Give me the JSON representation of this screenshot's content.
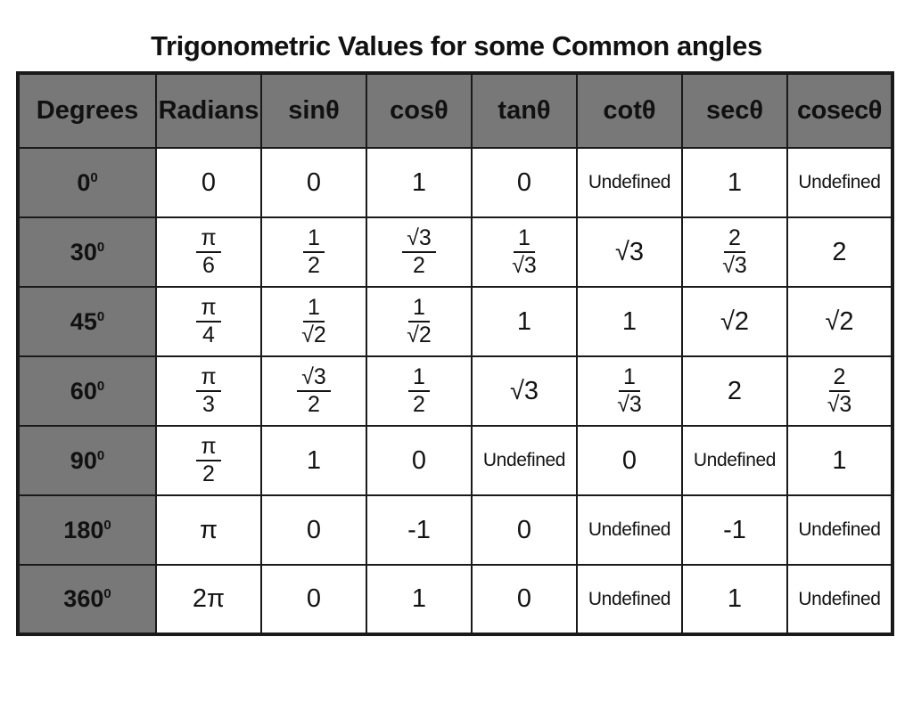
{
  "title": "Trigonometric Values for some Common angles",
  "colors": {
    "header_bg": "#787878",
    "grid_line": "#1a1a1a",
    "cell_bg": "#ffffff",
    "page_bg": "#ffffff",
    "text": "#131313"
  },
  "chart_data": {
    "type": "table",
    "title": "Trigonometric Values for some Common angles",
    "columns": [
      "Degrees",
      "Radians",
      "sinθ",
      "cosθ",
      "tanθ",
      "cotθ",
      "secθ",
      "cosecθ"
    ],
    "rows": [
      {
        "degrees": {
          "label": "0",
          "sup": "0"
        },
        "values": [
          "0",
          "0",
          "1",
          "0",
          "Undefined",
          "1",
          "Undefined"
        ]
      },
      {
        "degrees": {
          "label": "30",
          "sup": "0"
        },
        "values": [
          {
            "frac": [
              "π",
              "6"
            ]
          },
          {
            "frac": [
              "1",
              "2"
            ]
          },
          {
            "frac": [
              "√3",
              "2"
            ]
          },
          {
            "frac": [
              "1",
              "√3"
            ]
          },
          "√3",
          {
            "frac": [
              "2",
              "√3"
            ]
          },
          "2"
        ]
      },
      {
        "degrees": {
          "label": "45",
          "sup": "0"
        },
        "values": [
          {
            "frac": [
              "π",
              "4"
            ]
          },
          {
            "frac": [
              "1",
              "√2"
            ]
          },
          {
            "frac": [
              "1",
              "√2"
            ]
          },
          "1",
          "1",
          "√2",
          "√2"
        ]
      },
      {
        "degrees": {
          "label": "60",
          "sup": "0"
        },
        "values": [
          {
            "frac": [
              "π",
              "3"
            ]
          },
          {
            "frac": [
              "√3",
              "2"
            ]
          },
          {
            "frac": [
              "1",
              "2"
            ]
          },
          "√3",
          {
            "frac": [
              "1",
              "√3"
            ]
          },
          "2",
          {
            "frac": [
              "2",
              "√3"
            ]
          }
        ]
      },
      {
        "degrees": {
          "label": "90",
          "sup": "0"
        },
        "values": [
          {
            "frac": [
              "π",
              "2"
            ]
          },
          "1",
          "0",
          "Undefined",
          "0",
          "Undefined",
          "1"
        ]
      },
      {
        "degrees": {
          "label": "180",
          "sup": "0"
        },
        "values": [
          "π",
          "0",
          "-1",
          "0",
          "Undefined",
          "-1",
          "Undefined"
        ]
      },
      {
        "degrees": {
          "label": "360",
          "sup": "0"
        },
        "values": [
          "2π",
          "0",
          "1",
          "0",
          "Undefined",
          "1",
          "Undefined"
        ]
      }
    ]
  }
}
